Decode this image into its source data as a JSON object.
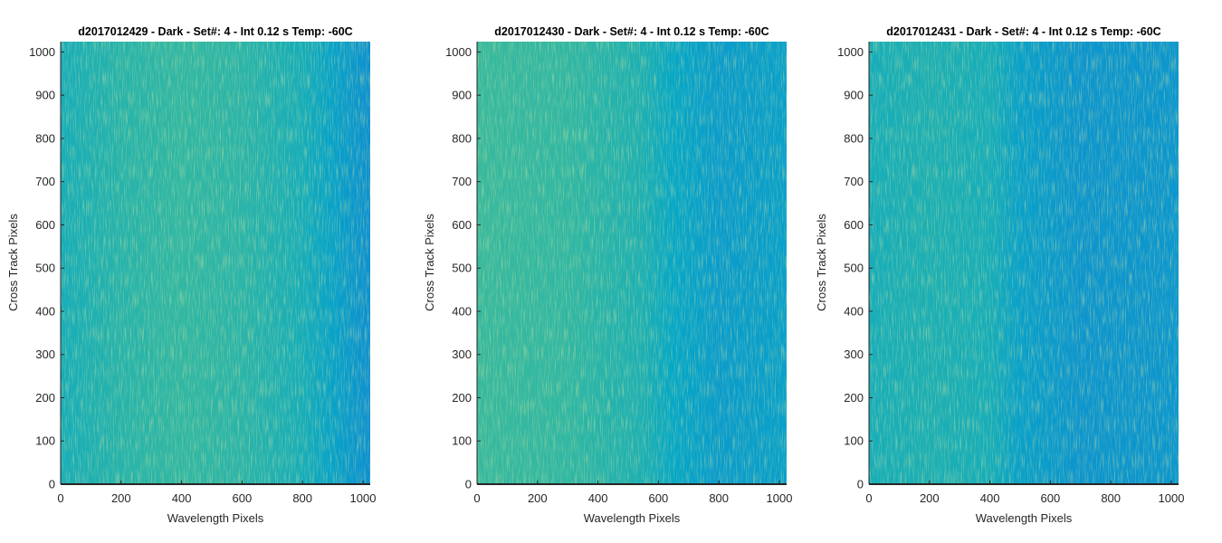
{
  "chart_data": [
    {
      "type": "heatmap",
      "title": "d2017012429 - Dark - Set#: 4 - Int 0.12 s Temp: -60C",
      "xlabel": "Wavelength Pixels",
      "ylabel": "Cross Track Pixels",
      "xlim": [
        0,
        1024
      ],
      "ylim": [
        0,
        1024
      ],
      "xticks": [
        0,
        200,
        400,
        600,
        800,
        1000
      ],
      "yticks": [
        0,
        100,
        200,
        300,
        400,
        500,
        600,
        700,
        800,
        900,
        1000
      ],
      "colormap": "parula",
      "intensity_profile": [
        {
          "x": 0,
          "level": 0.5
        },
        {
          "x": 200,
          "level": 0.55
        },
        {
          "x": 400,
          "level": 0.58
        },
        {
          "x": 600,
          "level": 0.56
        },
        {
          "x": 800,
          "level": 0.5
        },
        {
          "x": 900,
          "level": 0.43
        },
        {
          "x": 1024,
          "level": 0.35
        }
      ]
    },
    {
      "type": "heatmap",
      "title": "d2017012430 - Dark - Set#: 4 - Int 0.12 s Temp: -60C",
      "xlabel": "Wavelength Pixels",
      "ylabel": "Cross Track Pixels",
      "xlim": [
        0,
        1024
      ],
      "ylim": [
        0,
        1024
      ],
      "xticks": [
        0,
        200,
        400,
        600,
        800,
        1000
      ],
      "yticks": [
        0,
        100,
        200,
        300,
        400,
        500,
        600,
        700,
        800,
        900,
        1000
      ],
      "colormap": "parula",
      "intensity_profile": [
        {
          "x": 0,
          "level": 0.6
        },
        {
          "x": 300,
          "level": 0.58
        },
        {
          "x": 550,
          "level": 0.52
        },
        {
          "x": 650,
          "level": 0.45
        },
        {
          "x": 800,
          "level": 0.4
        },
        {
          "x": 1024,
          "level": 0.42
        }
      ]
    },
    {
      "type": "heatmap",
      "title": "d2017012431 - Dark - Set#: 4 - Int 0.12 s Temp: -60C",
      "xlabel": "Wavelength Pixels",
      "ylabel": "Cross Track Pixels",
      "xlim": [
        0,
        1024
      ],
      "ylim": [
        0,
        1024
      ],
      "xticks": [
        0,
        200,
        400,
        600,
        800,
        1000
      ],
      "yticks": [
        0,
        100,
        200,
        300,
        400,
        500,
        600,
        700,
        800,
        900,
        1000
      ],
      "colormap": "parula",
      "intensity_profile": [
        {
          "x": 0,
          "level": 0.5
        },
        {
          "x": 200,
          "level": 0.52
        },
        {
          "x": 400,
          "level": 0.5
        },
        {
          "x": 500,
          "level": 0.42
        },
        {
          "x": 700,
          "level": 0.37
        },
        {
          "x": 1024,
          "level": 0.38
        }
      ]
    }
  ]
}
